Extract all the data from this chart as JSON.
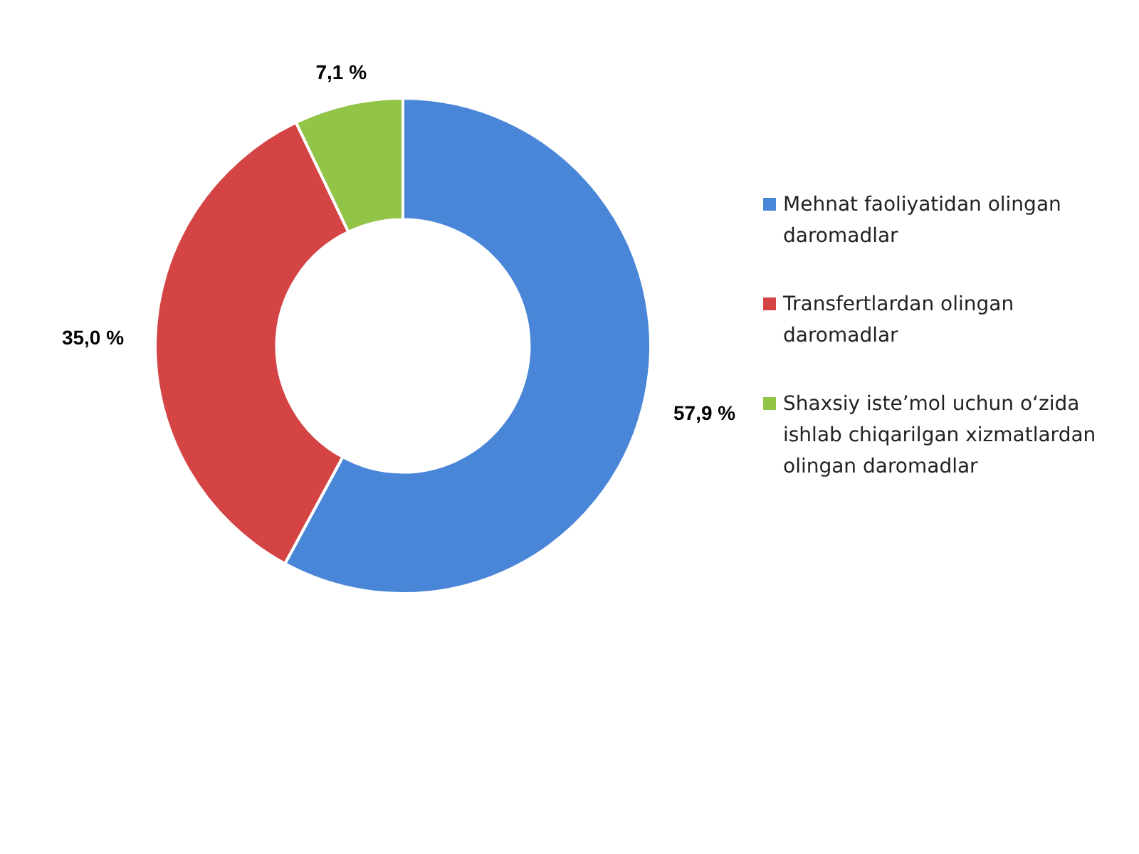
{
  "chart_data": {
    "type": "donut",
    "categories": [
      "Mehnat faoliyatidan olingan daromadlar",
      "Transfertlardan  olingan daromadlar",
      "Shaxsiy iste’mol uchun o‘zida ishlab chiqarilgan xizmatlardan olingan daromadlar"
    ],
    "values": [
      57.9,
      35.0,
      7.1
    ],
    "colors": [
      "#4a86d8",
      "#d44444",
      "#92c447"
    ],
    "value_labels": [
      "57,9 %",
      "35,0 %",
      "7,1 %"
    ],
    "legend": "right"
  }
}
